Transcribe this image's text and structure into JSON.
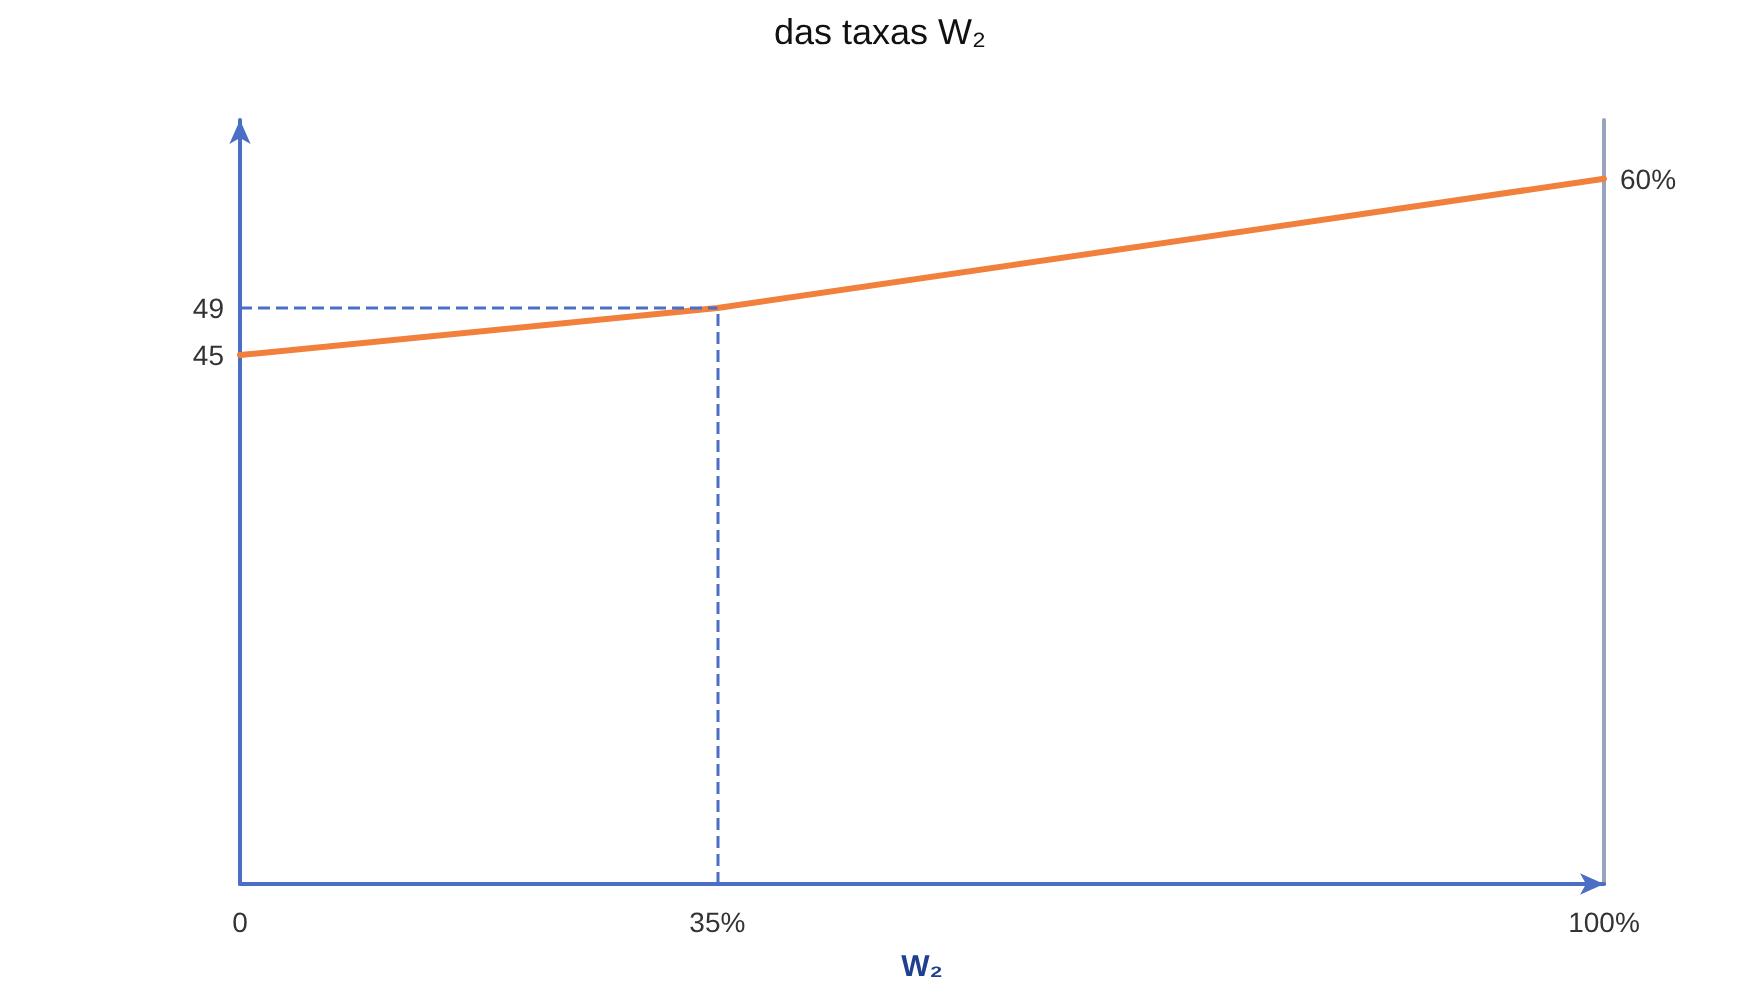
{
  "chart_data": {
    "type": "line",
    "title": "das taxas W₂",
    "xlabel": "W₂",
    "x": [
      0,
      35,
      100
    ],
    "series": [
      {
        "color": "#f0803c",
        "values": [
          45,
          49,
          60
        ]
      }
    ],
    "xlim": [
      0,
      100
    ],
    "xticks": [
      0,
      {
        "value": 35,
        "label": "35%"
      },
      {
        "value": 100,
        "label": "100%"
      }
    ],
    "ylim": [
      0,
      65
    ],
    "yticks": [
      45,
      49
    ],
    "annotations": [
      {
        "text": "60%",
        "x": 100,
        "y": 60
      }
    ],
    "ref_lines": [
      {
        "axis": "y",
        "value": 49,
        "color": "#4a6fc5",
        "line_style": "dashed"
      },
      {
        "axis": "x",
        "value": 35,
        "color": "#4a6fc5",
        "line_style": "dashed"
      }
    ],
    "grid": false,
    "marker": "none",
    "line_style": "solid"
  }
}
